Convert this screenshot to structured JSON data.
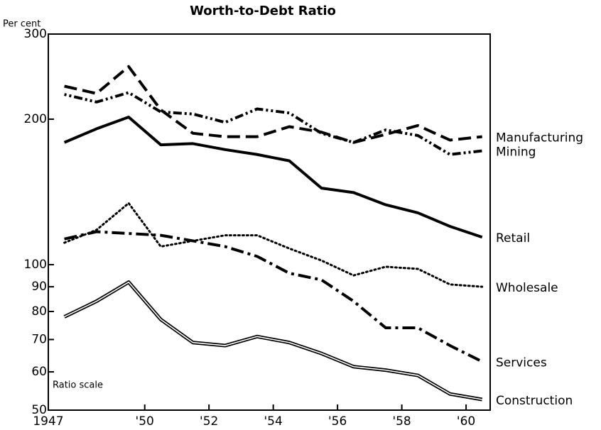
{
  "chart_data": {
    "type": "line",
    "title": "Worth-to-Debt Ratio",
    "y_label": "Per cent",
    "annotation": "Ratio scale",
    "log_scale": true,
    "x": [
      1947.5,
      1948.5,
      1949.5,
      1950.5,
      1951.5,
      1952.5,
      1953.5,
      1954.5,
      1955.5,
      1956.5,
      1957.5,
      1958.5,
      1959.5,
      1960.5
    ],
    "xlim": [
      1947,
      1960.75
    ],
    "xticks": [
      1947,
      {
        "value": 1950,
        "label": "'50"
      },
      {
        "value": 1952,
        "label": "'52"
      },
      {
        "value": 1954,
        "label": "'54"
      },
      {
        "value": 1956,
        "label": "'56"
      },
      {
        "value": 1958,
        "label": "'58"
      },
      {
        "value": 1960,
        "label": "'60"
      }
    ],
    "ylim": [
      50,
      300
    ],
    "yticks": [
      50,
      60,
      70,
      80,
      90,
      100,
      200,
      300
    ],
    "series": [
      {
        "name": "Manufacturing",
        "color": "#000000",
        "line_style": "dashed",
        "values": [
          234,
          226,
          257,
          209,
          187,
          184,
          184,
          193,
          188,
          179,
          186,
          194,
          181,
          184
        ]
      },
      {
        "name": "Mining",
        "color": "#000000",
        "line_style": "dotted-dash",
        "values": [
          225,
          217,
          227,
          207,
          205,
          197,
          210,
          206,
          187,
          179,
          190,
          185,
          169,
          172
        ]
      },
      {
        "name": "Retail",
        "color": "#000000",
        "line_style": "solid",
        "values": [
          179,
          191,
          202,
          177,
          178,
          173,
          169,
          164,
          144,
          141,
          133,
          128,
          120,
          114
        ]
      },
      {
        "name": "Wholesale",
        "color": "#000000",
        "line_style": "dotted",
        "values": [
          111,
          118,
          134,
          109,
          112,
          115,
          115,
          108,
          102,
          95,
          99,
          98,
          91,
          90
        ]
      },
      {
        "name": "Services",
        "color": "#000000",
        "line_style": "dash-dot",
        "values": [
          113,
          117,
          116,
          115,
          112,
          109,
          104,
          96,
          93,
          84,
          74,
          74,
          68,
          63
        ]
      },
      {
        "name": "Construction",
        "color": "#000000",
        "line_style": "double",
        "values": [
          78,
          84,
          92,
          77,
          69,
          68,
          71,
          69,
          65.5,
          61.5,
          60.5,
          59,
          54,
          52.6
        ]
      }
    ]
  }
}
